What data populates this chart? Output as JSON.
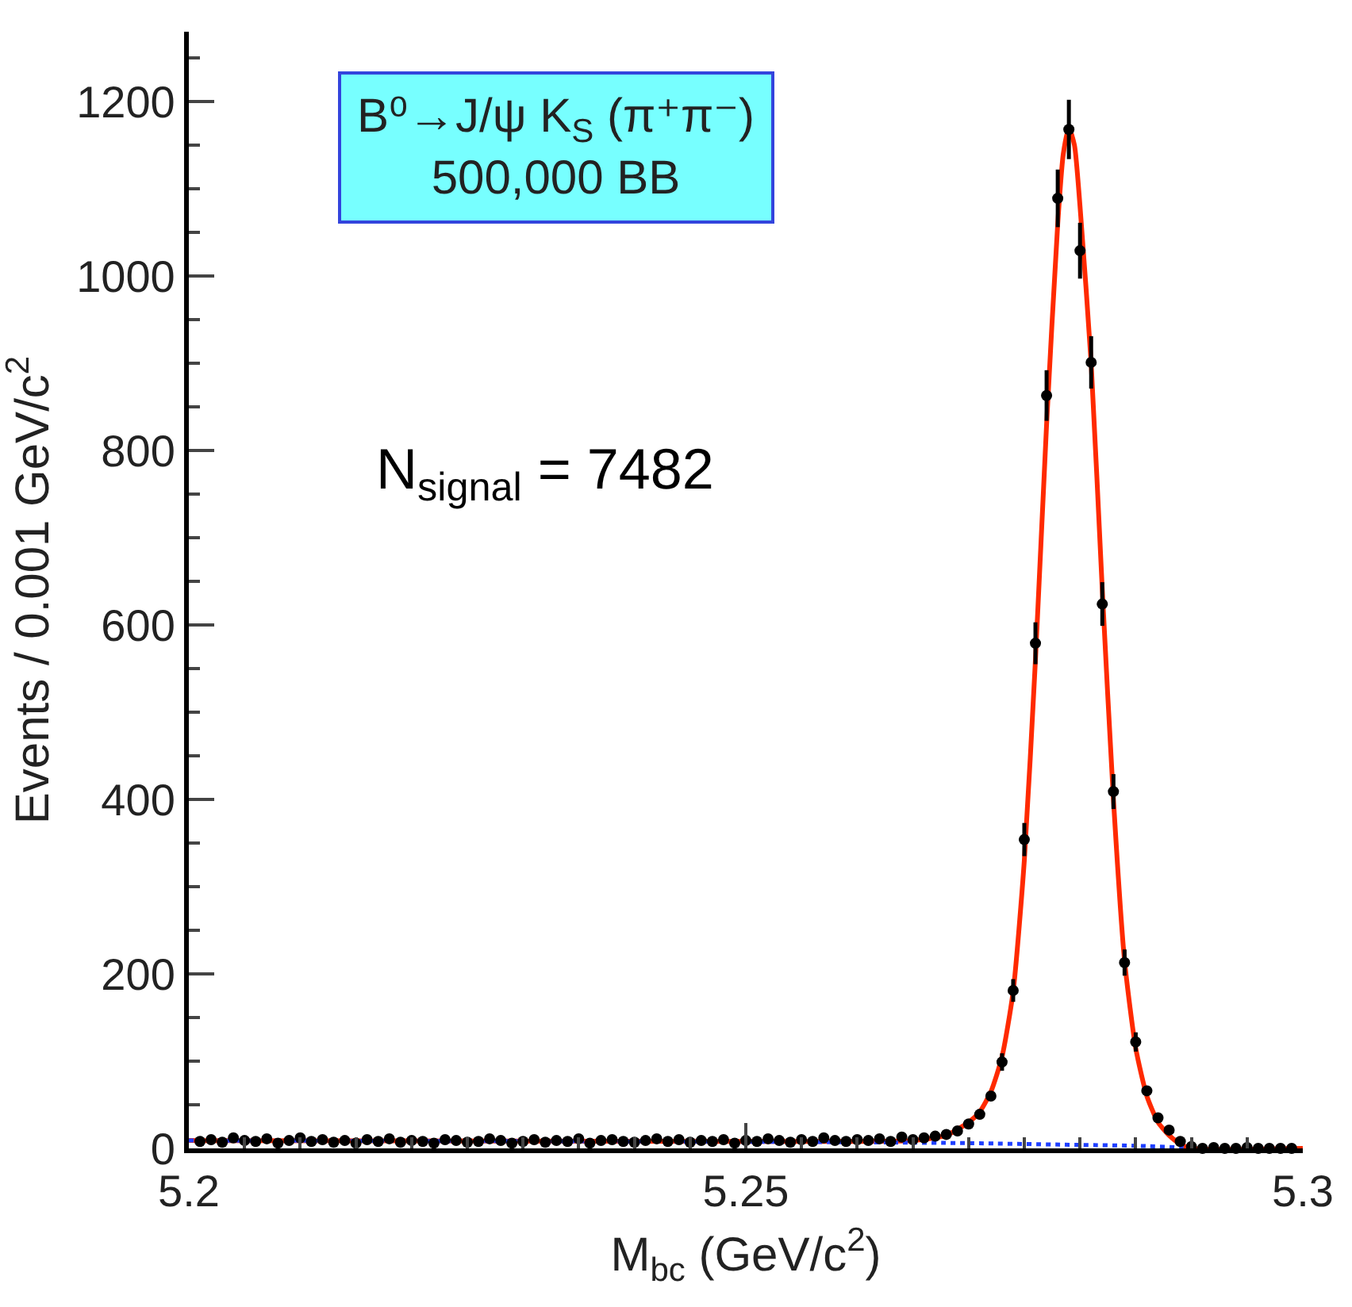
{
  "chart_data": {
    "type": "scatter",
    "xlabel": "M$_{bc}$ (GeV/c$^{2}$)",
    "ylabel": "Events / 0.001 GeV/c$^{2}$",
    "annotations": [
      "B⁰→J/ψ K$_{S}$ (π⁺π⁻)\n500,000 BB",
      "N$_{signal}$ = 7482"
    ],
    "xlim": [
      5.2,
      5.3
    ],
    "ylim": [
      0,
      1280
    ],
    "xticks": [
      5.2,
      5.25,
      5.3
    ],
    "yticks": [
      0,
      200,
      400,
      600,
      800,
      1000,
      1200
    ],
    "series": [
      {
        "color": "#000000",
        "marker": "circle",
        "x": [
          5.201,
          5.202,
          5.203,
          5.204,
          5.205,
          5.206,
          5.207,
          5.208,
          5.209,
          5.21,
          5.211,
          5.212,
          5.213,
          5.214,
          5.215,
          5.216,
          5.217,
          5.218,
          5.219,
          5.22,
          5.221,
          5.222,
          5.223,
          5.224,
          5.225,
          5.226,
          5.227,
          5.228,
          5.229,
          5.23,
          5.231,
          5.232,
          5.233,
          5.234,
          5.235,
          5.236,
          5.237,
          5.238,
          5.239,
          5.24,
          5.241,
          5.242,
          5.243,
          5.244,
          5.245,
          5.246,
          5.247,
          5.248,
          5.249,
          5.25,
          5.251,
          5.252,
          5.253,
          5.254,
          5.255,
          5.256,
          5.257,
          5.258,
          5.259,
          5.26,
          5.261,
          5.262,
          5.263,
          5.264,
          5.265,
          5.266,
          5.267,
          5.268,
          5.269,
          5.27,
          5.271,
          5.272,
          5.273,
          5.274,
          5.275,
          5.276,
          5.277,
          5.278,
          5.279,
          5.28,
          5.281,
          5.282,
          5.283,
          5.284,
          5.285,
          5.286,
          5.287,
          5.288,
          5.289,
          5.29,
          5.291,
          5.292,
          5.293,
          5.294,
          5.295,
          5.296,
          5.297,
          5.298,
          5.299
        ],
        "values": [
          8,
          10,
          7,
          12,
          9,
          8,
          11,
          6,
          9,
          12,
          8,
          10,
          7,
          9,
          6,
          10,
          8,
          11,
          7,
          9,
          8,
          6,
          10,
          9,
          7,
          8,
          11,
          9,
          6,
          8,
          10,
          7,
          9,
          8,
          11,
          6,
          9,
          10,
          8,
          7,
          9,
          11,
          8,
          10,
          7,
          9,
          8,
          10,
          6,
          9,
          8,
          11,
          9,
          7,
          10,
          8,
          12,
          9,
          8,
          10,
          9,
          11,
          8,
          13,
          10,
          12,
          14,
          16,
          20,
          28,
          39,
          60,
          99,
          181,
          354,
          579,
          863,
          1089,
          1168,
          1029,
          901,
          624,
          409,
          213,
          122,
          66,
          35,
          21,
          8,
          2,
          0,
          1,
          0,
          0,
          1,
          0,
          0,
          0,
          0
        ],
        "errors": [
          null,
          null,
          null,
          null,
          null,
          null,
          null,
          null,
          null,
          null,
          null,
          null,
          null,
          null,
          null,
          null,
          null,
          null,
          null,
          null,
          null,
          null,
          null,
          null,
          null,
          null,
          null,
          null,
          null,
          null,
          null,
          null,
          null,
          null,
          null,
          null,
          null,
          null,
          null,
          null,
          null,
          null,
          null,
          null,
          null,
          null,
          null,
          null,
          null,
          null,
          null,
          null,
          null,
          null,
          null,
          null,
          null,
          null,
          null,
          null,
          null,
          null,
          null,
          null,
          null,
          null,
          null,
          null,
          null,
          null,
          null,
          null,
          10,
          13,
          19,
          24,
          29,
          33,
          34,
          32,
          30,
          25,
          20,
          15,
          11,
          null,
          null,
          null,
          null,
          null,
          null,
          null,
          null,
          null,
          null,
          null,
          null,
          null,
          null
        ]
      },
      {
        "type": "line",
        "color": "#ff2a00",
        "line_style": "solid",
        "x": [
          5.2,
          5.25,
          5.265,
          5.268,
          5.27,
          5.271,
          5.272,
          5.273,
          5.274,
          5.275,
          5.276,
          5.277,
          5.278,
          5.2785,
          5.279,
          5.2795,
          5.28,
          5.281,
          5.282,
          5.283,
          5.284,
          5.285,
          5.286,
          5.287,
          5.288,
          5.289,
          5.29,
          5.3
        ],
        "values": [
          9,
          8,
          9,
          15,
          30,
          42,
          65,
          105,
          180,
          330,
          560,
          830,
          1060,
          1140,
          1170,
          1150,
          1080,
          900,
          640,
          400,
          215,
          115,
          60,
          30,
          15,
          5,
          0,
          0
        ]
      },
      {
        "type": "line",
        "color": "#1f3fff",
        "line_style": "dotted",
        "x": [
          5.2,
          5.24,
          5.26,
          5.27,
          5.28,
          5.285,
          5.289,
          5.29
        ],
        "values": [
          9,
          8,
          7,
          6,
          4,
          3,
          1,
          0
        ]
      }
    ]
  }
}
